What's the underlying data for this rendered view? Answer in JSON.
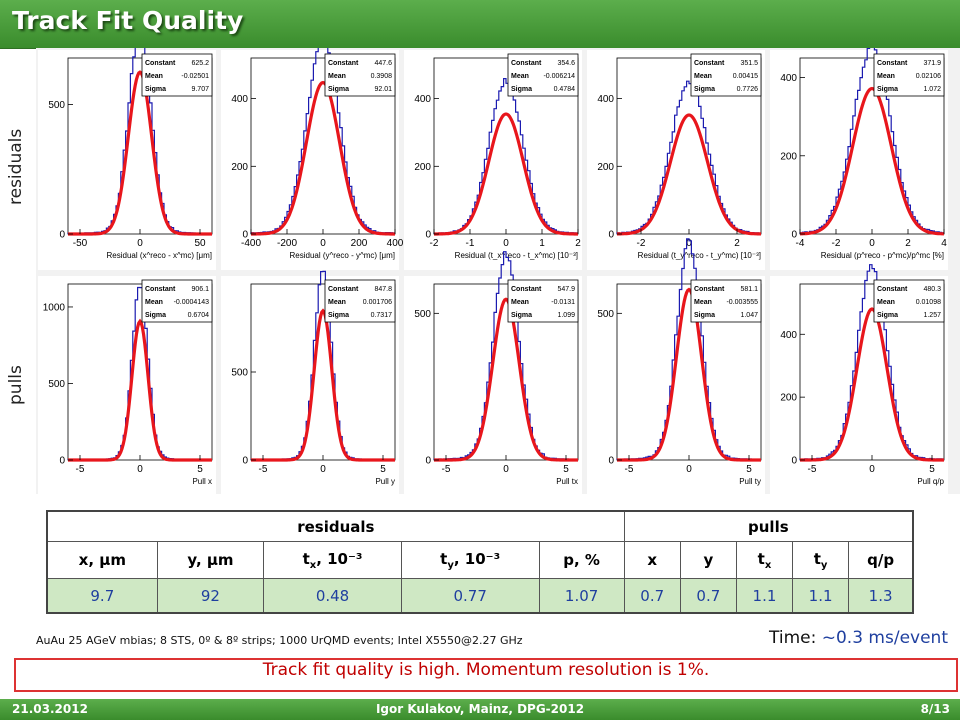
{
  "slide": {
    "title": "Track Fit Quality",
    "row_labels": [
      "residuals",
      "pulls"
    ],
    "setup_note": "AuAu 25 AGeV mbias; 8 STS, 0º & 8º strips; 1000 UrQMD events; Intel X5550@2.27 GHz",
    "timing_label": "Time:",
    "timing_value": "~0.3 ms/event",
    "conclusion": "Track fit quality is high. Momentum resolution is 1%.",
    "footer": {
      "date": "21.03.2012",
      "author": "Igor Kulakov, Mainz, DPG-2012",
      "page": "8/13"
    }
  },
  "table": {
    "groups": [
      "residuals",
      "pulls"
    ],
    "residual_headers": [
      {
        "main": "x",
        "sub": "",
        "unit": ", μm"
      },
      {
        "main": "y",
        "sub": "",
        "unit": ", μm"
      },
      {
        "main": "t",
        "sub": "x",
        "unit": ", 10⁻³"
      },
      {
        "main": "t",
        "sub": "y",
        "unit": ", 10⁻³"
      },
      {
        "main": "p",
        "sub": "",
        "unit": ", %"
      }
    ],
    "pull_headers": [
      {
        "main": "x",
        "sub": ""
      },
      {
        "main": "y",
        "sub": ""
      },
      {
        "main": "t",
        "sub": "x"
      },
      {
        "main": "t",
        "sub": "y"
      },
      {
        "main": "q/p",
        "sub": ""
      }
    ],
    "residual_values": [
      "9.7",
      "92",
      "0.48",
      "0.77",
      "1.07"
    ],
    "pull_values": [
      "0.7",
      "0.7",
      "1.1",
      "1.1",
      "1.3"
    ]
  },
  "colors": {
    "histogram": "#1b1bb0",
    "fit": "#e8161c",
    "accent": "#3f9a30",
    "values": "#1f3f9f"
  },
  "chart_data": [
    {
      "type": "histogram",
      "xlabel": "Residual (x^reco - x^mc) [μm]",
      "xlim": [
        -60,
        60
      ],
      "xticks": [
        "-50",
        "0",
        "50"
      ],
      "yticks": [
        "0",
        "500"
      ],
      "ymax_axis": 680,
      "fit_mean": 0,
      "fit_sigma": 9.707,
      "fit_constant": 625.2,
      "stats": {
        "Constant": "625.2",
        "Mean": "-0.02501",
        "Sigma": "9.707"
      }
    },
    {
      "type": "histogram",
      "xlabel": "Residual (y^reco - y^mc) [μm]",
      "xlim": [
        -400,
        400
      ],
      "xticks": [
        "-400",
        "-200",
        "0",
        "200",
        "400"
      ],
      "yticks": [
        "0",
        "200",
        "400"
      ],
      "ymax_axis": 520,
      "fit_mean": 0,
      "fit_sigma": 92.01,
      "fit_constant": 447.6,
      "stats": {
        "Constant": "447.6",
        "Mean": "0.3908",
        "Sigma": "92.01"
      }
    },
    {
      "type": "histogram",
      "xlabel": "Residual (t_x^reco - t_x^mc) [10⁻³]",
      "xlim": [
        -2,
        2
      ],
      "xticks": [
        "-2",
        "-1",
        "0",
        "1",
        "2"
      ],
      "yticks": [
        "0",
        "200",
        "400"
      ],
      "ymax_axis": 520,
      "fit_mean": 0,
      "fit_sigma": 0.4784,
      "fit_constant": 354.6,
      "stats": {
        "Constant": "354.6",
        "Mean": "-0.006214",
        "Sigma": "0.4784"
      }
    },
    {
      "type": "histogram",
      "xlabel": "Residual (t_y^reco - t_y^mc) [10⁻³]",
      "xlim": [
        -3,
        3
      ],
      "xticks": [
        "-2",
        "0",
        "2"
      ],
      "yticks": [
        "0",
        "200",
        "400"
      ],
      "ymax_axis": 520,
      "fit_mean": 0,
      "fit_sigma": 0.7726,
      "fit_constant": 351.5,
      "stats": {
        "Constant": "351.5",
        "Mean": "0.00415",
        "Sigma": "0.7726"
      }
    },
    {
      "type": "histogram",
      "xlabel": "Residual (p^reco - p^mc)/p^mc [%]",
      "xlim": [
        -4,
        4
      ],
      "xticks": [
        "-4",
        "-2",
        "0",
        "2",
        "4"
      ],
      "yticks": [
        "0",
        "200",
        "400"
      ],
      "ymax_axis": 450,
      "fit_mean": 0,
      "fit_sigma": 1.072,
      "fit_constant": 371.9,
      "stats": {
        "Constant": "371.9",
        "Mean": "0.02106",
        "Sigma": "1.072"
      }
    },
    {
      "type": "histogram",
      "xlabel": "Pull x",
      "xlim": [
        -6,
        6
      ],
      "xticks": [
        "-5",
        "0",
        "5"
      ],
      "yticks": [
        "0",
        "500",
        "1000"
      ],
      "ymax_axis": 1150,
      "fit_mean": 0,
      "fit_sigma": 0.6704,
      "fit_constant": 906.1,
      "stats": {
        "Constant": "906.1",
        "Mean": "-0.0004143",
        "Sigma": "0.6704"
      }
    },
    {
      "type": "histogram",
      "xlabel": "Pull y",
      "xlim": [
        -6,
        6
      ],
      "xticks": [
        "-5",
        "0",
        "5"
      ],
      "yticks": [
        "0",
        "500"
      ],
      "ymax_axis": 1000,
      "fit_mean": 0,
      "fit_sigma": 0.7317,
      "fit_constant": 847.8,
      "stats": {
        "Constant": "847.8",
        "Mean": "0.001706",
        "Sigma": "0.7317"
      }
    },
    {
      "type": "histogram",
      "xlabel": "Pull tx",
      "xlim": [
        -6,
        6
      ],
      "xticks": [
        "-5",
        "0",
        "5"
      ],
      "yticks": [
        "0",
        "500"
      ],
      "ymax_axis": 600,
      "fit_mean": 0,
      "fit_sigma": 1.099,
      "fit_constant": 547.9,
      "stats": {
        "Constant": "547.9",
        "Mean": "-0.0131",
        "Sigma": "1.099"
      }
    },
    {
      "type": "histogram",
      "xlabel": "Pull ty",
      "xlim": [
        -6,
        6
      ],
      "xticks": [
        "-5",
        "0",
        "5"
      ],
      "yticks": [
        "0",
        "500"
      ],
      "ymax_axis": 600,
      "fit_mean": 0,
      "fit_sigma": 1.047,
      "fit_constant": 581.1,
      "stats": {
        "Constant": "581.1",
        "Mean": "-0.003555",
        "Sigma": "1.047"
      }
    },
    {
      "type": "histogram",
      "xlabel": "Pull q/p",
      "xlim": [
        -6,
        6
      ],
      "xticks": [
        "-5",
        "0",
        "5"
      ],
      "yticks": [
        "0",
        "200",
        "400"
      ],
      "ymax_axis": 560,
      "fit_mean": 0,
      "fit_sigma": 1.257,
      "fit_constant": 480.3,
      "stats": {
        "Constant": "480.3",
        "Mean": "0.01098",
        "Sigma": "1.257"
      }
    }
  ]
}
